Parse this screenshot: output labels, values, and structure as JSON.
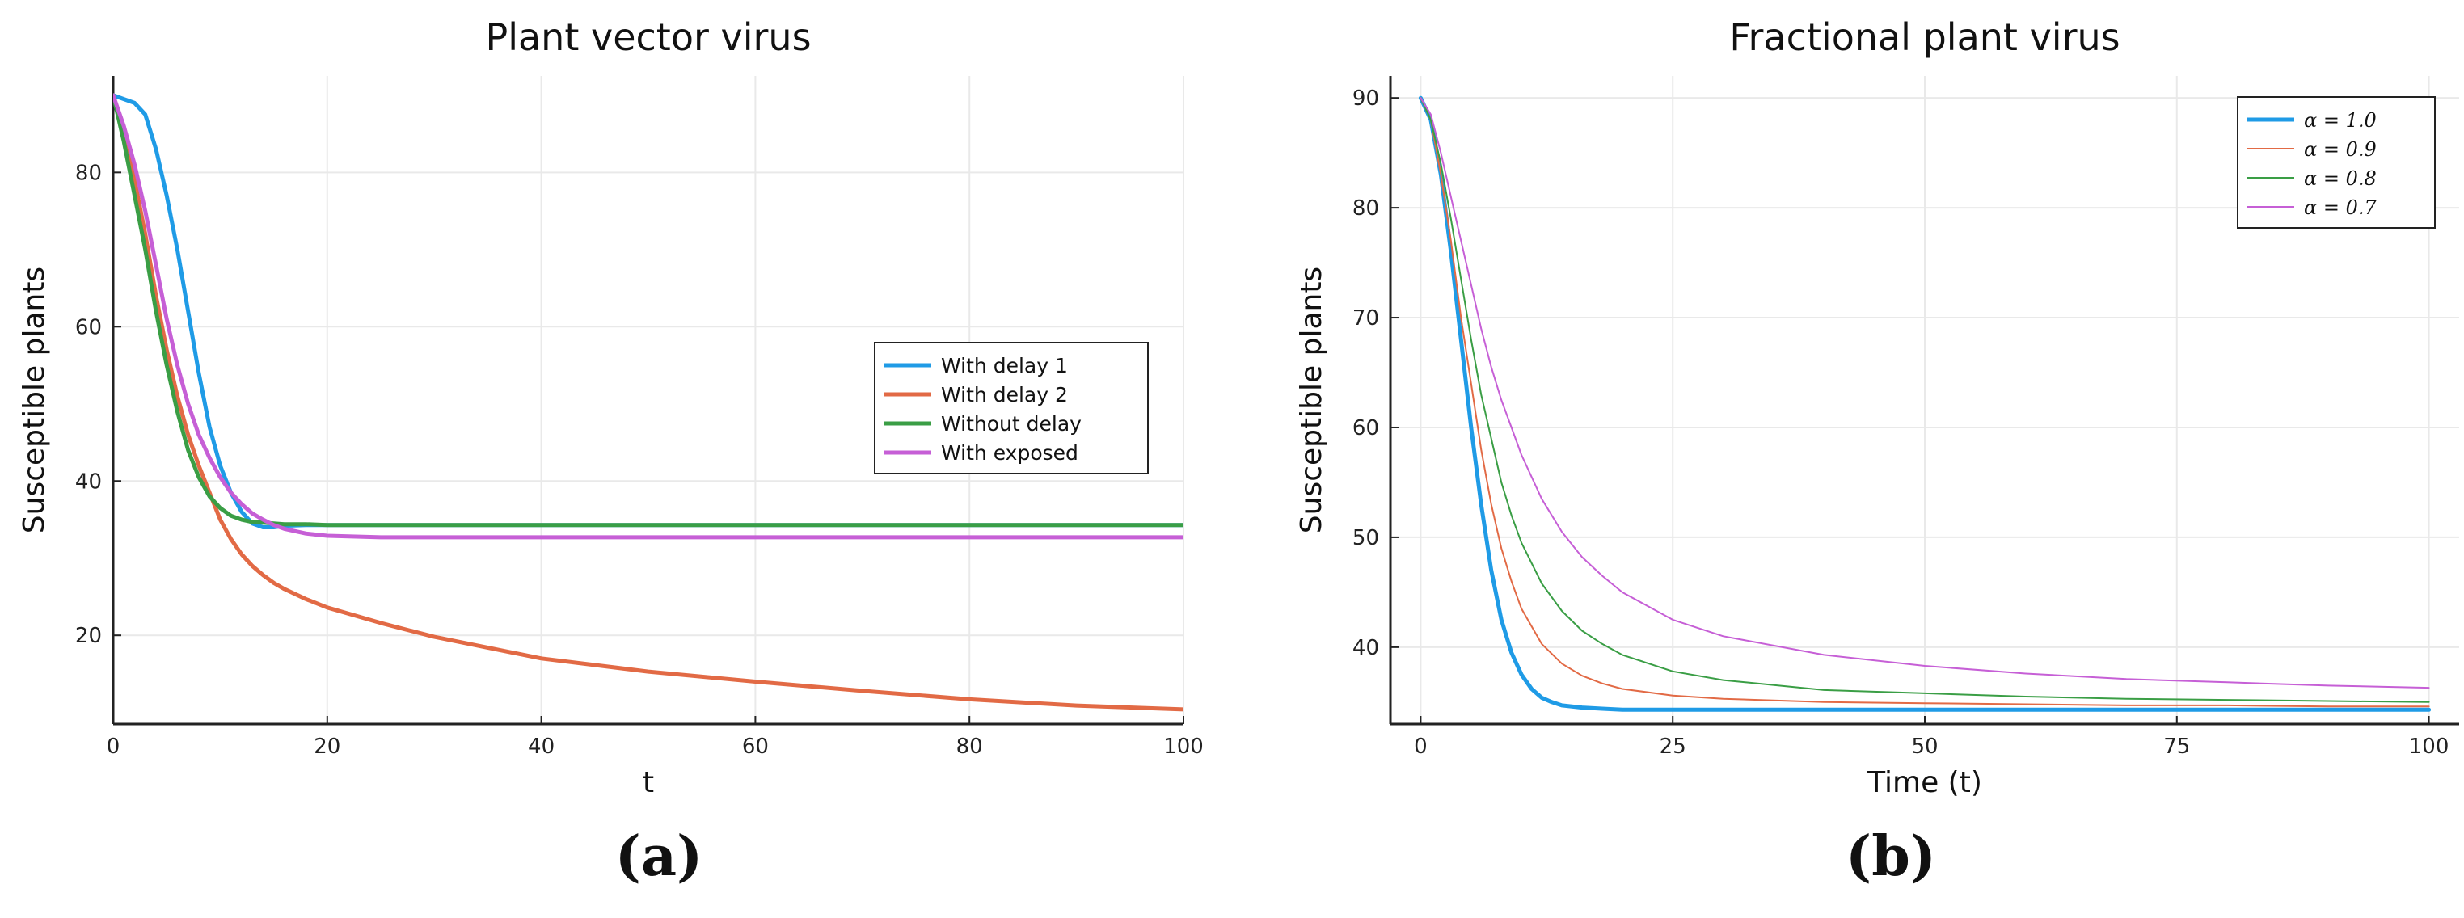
{
  "chart_data": [
    {
      "id": "a",
      "type": "line",
      "title": "Plant vector virus",
      "xlabel": "t",
      "ylabel": "Susceptible plants",
      "xlim": [
        0,
        100
      ],
      "ylim": [
        8.5,
        92.5
      ],
      "xticks": [
        0,
        20,
        40,
        60,
        80,
        100
      ],
      "yticks": [
        20,
        40,
        60,
        80
      ],
      "grid": true,
      "legend_position": "center-right",
      "caption": "(a)",
      "series": [
        {
          "name": "With delay 1",
          "color": "#1f9be6",
          "width": 5,
          "x": [
            0,
            1,
            2,
            3,
            4,
            5,
            6,
            7,
            8,
            9,
            10,
            11,
            12,
            13,
            14,
            15,
            16,
            18,
            20,
            25,
            30,
            40,
            50,
            60,
            70,
            80,
            90,
            100
          ],
          "y": [
            90,
            89.5,
            89,
            87.5,
            83,
            77,
            70,
            62,
            54,
            47,
            42,
            38.5,
            36,
            34.5,
            34,
            34,
            34.2,
            34.3,
            34.3,
            34.3,
            34.3,
            34.3,
            34.3,
            34.3,
            34.3,
            34.3,
            34.3,
            34.3
          ]
        },
        {
          "name": "With delay 2",
          "color": "#e26a45",
          "width": 5,
          "x": [
            0,
            1,
            2,
            3,
            4,
            5,
            6,
            7,
            8,
            9,
            10,
            11,
            12,
            13,
            14,
            15,
            16,
            18,
            20,
            25,
            30,
            40,
            50,
            60,
            70,
            80,
            90,
            100
          ],
          "y": [
            90,
            85,
            79,
            72,
            64,
            57,
            51,
            46,
            42,
            38.5,
            35,
            32.5,
            30.5,
            29,
            27.8,
            26.8,
            26,
            24.7,
            23.6,
            21.6,
            19.8,
            17,
            15.3,
            14,
            12.8,
            11.7,
            10.9,
            10.4
          ]
        },
        {
          "name": "Without delay",
          "color": "#3a9e45",
          "width": 5,
          "x": [
            0,
            1,
            2,
            3,
            4,
            5,
            6,
            7,
            8,
            9,
            10,
            11,
            12,
            13,
            14,
            15,
            16,
            18,
            20,
            25,
            30,
            40,
            50,
            60,
            70,
            80,
            90,
            100
          ],
          "y": [
            90,
            84,
            77,
            70,
            62,
            55,
            49,
            44,
            40.5,
            38,
            36.5,
            35.5,
            35,
            34.7,
            34.6,
            34.5,
            34.4,
            34.4,
            34.3,
            34.3,
            34.3,
            34.3,
            34.3,
            34.3,
            34.3,
            34.3,
            34.3,
            34.3
          ]
        },
        {
          "name": "With exposed",
          "color": "#c65fd6",
          "width": 5,
          "x": [
            0,
            1,
            2,
            3,
            4,
            5,
            6,
            7,
            8,
            9,
            10,
            11,
            12,
            13,
            14,
            15,
            16,
            18,
            20,
            25,
            30,
            40,
            50,
            60,
            70,
            80,
            90,
            100
          ],
          "y": [
            90,
            86,
            81,
            75,
            68,
            61,
            55,
            50,
            46,
            43,
            40.5,
            38.5,
            37,
            35.8,
            35,
            34.3,
            33.8,
            33.2,
            32.9,
            32.7,
            32.7,
            32.7,
            32.7,
            32.7,
            32.7,
            32.7,
            32.7,
            32.7
          ]
        }
      ]
    },
    {
      "id": "b",
      "type": "line",
      "title": "Fractional plant virus",
      "xlabel": "Time (t)",
      "ylabel": "Susceptible plants",
      "xlim": [
        -3,
        103
      ],
      "ylim": [
        33,
        92
      ],
      "xticks": [
        0,
        25,
        50,
        75,
        100
      ],
      "yticks": [
        40,
        50,
        60,
        70,
        80,
        90
      ],
      "grid": true,
      "legend_position": "top-right",
      "caption": "(b)",
      "series": [
        {
          "name": "α = 1.0",
          "color": "#1f9be6",
          "width": 5,
          "x": [
            0,
            1,
            2,
            3,
            4,
            5,
            6,
            7,
            8,
            9,
            10,
            11,
            12,
            13,
            14,
            16,
            18,
            20,
            25,
            30,
            40,
            50,
            60,
            70,
            80,
            90,
            100
          ],
          "y": [
            90,
            88,
            83,
            76,
            68,
            60,
            53,
            47,
            42.5,
            39.5,
            37.5,
            36.2,
            35.4,
            35,
            34.7,
            34.5,
            34.4,
            34.3,
            34.3,
            34.3,
            34.3,
            34.3,
            34.3,
            34.3,
            34.3,
            34.3,
            34.3
          ]
        },
        {
          "name": "α = 0.9",
          "color": "#e26a45",
          "width": 2,
          "x": [
            0,
            1,
            2,
            3,
            4,
            5,
            6,
            7,
            8,
            9,
            10,
            12,
            14,
            16,
            18,
            20,
            25,
            30,
            40,
            50,
            60,
            70,
            80,
            90,
            100
          ],
          "y": [
            90,
            88,
            83,
            77,
            70,
            64,
            58,
            53,
            49,
            46,
            43.5,
            40.3,
            38.5,
            37.4,
            36.7,
            36.2,
            35.6,
            35.3,
            35,
            34.9,
            34.8,
            34.7,
            34.7,
            34.6,
            34.6
          ]
        },
        {
          "name": "α = 0.8",
          "color": "#3a9e45",
          "width": 2,
          "x": [
            0,
            1,
            2,
            3,
            4,
            5,
            6,
            7,
            8,
            9,
            10,
            12,
            14,
            16,
            18,
            20,
            25,
            30,
            40,
            50,
            60,
            70,
            80,
            90,
            100
          ],
          "y": [
            90,
            88,
            84,
            79,
            73.5,
            68,
            63,
            59,
            55,
            52,
            49.5,
            45.8,
            43.3,
            41.5,
            40.3,
            39.3,
            37.8,
            37,
            36.1,
            35.8,
            35.5,
            35.3,
            35.2,
            35.1,
            35
          ]
        },
        {
          "name": "α = 0.7",
          "color": "#c65fd6",
          "width": 2,
          "x": [
            0,
            1,
            2,
            3,
            4,
            5,
            6,
            7,
            8,
            9,
            10,
            12,
            14,
            16,
            18,
            20,
            25,
            30,
            40,
            50,
            60,
            70,
            80,
            90,
            100
          ],
          "y": [
            90,
            88.5,
            85,
            81,
            77,
            73,
            69,
            65.5,
            62.5,
            60,
            57.5,
            53.5,
            50.5,
            48.2,
            46.5,
            45,
            42.5,
            41,
            39.3,
            38.3,
            37.6,
            37.1,
            36.8,
            36.5,
            36.3
          ]
        }
      ]
    }
  ]
}
